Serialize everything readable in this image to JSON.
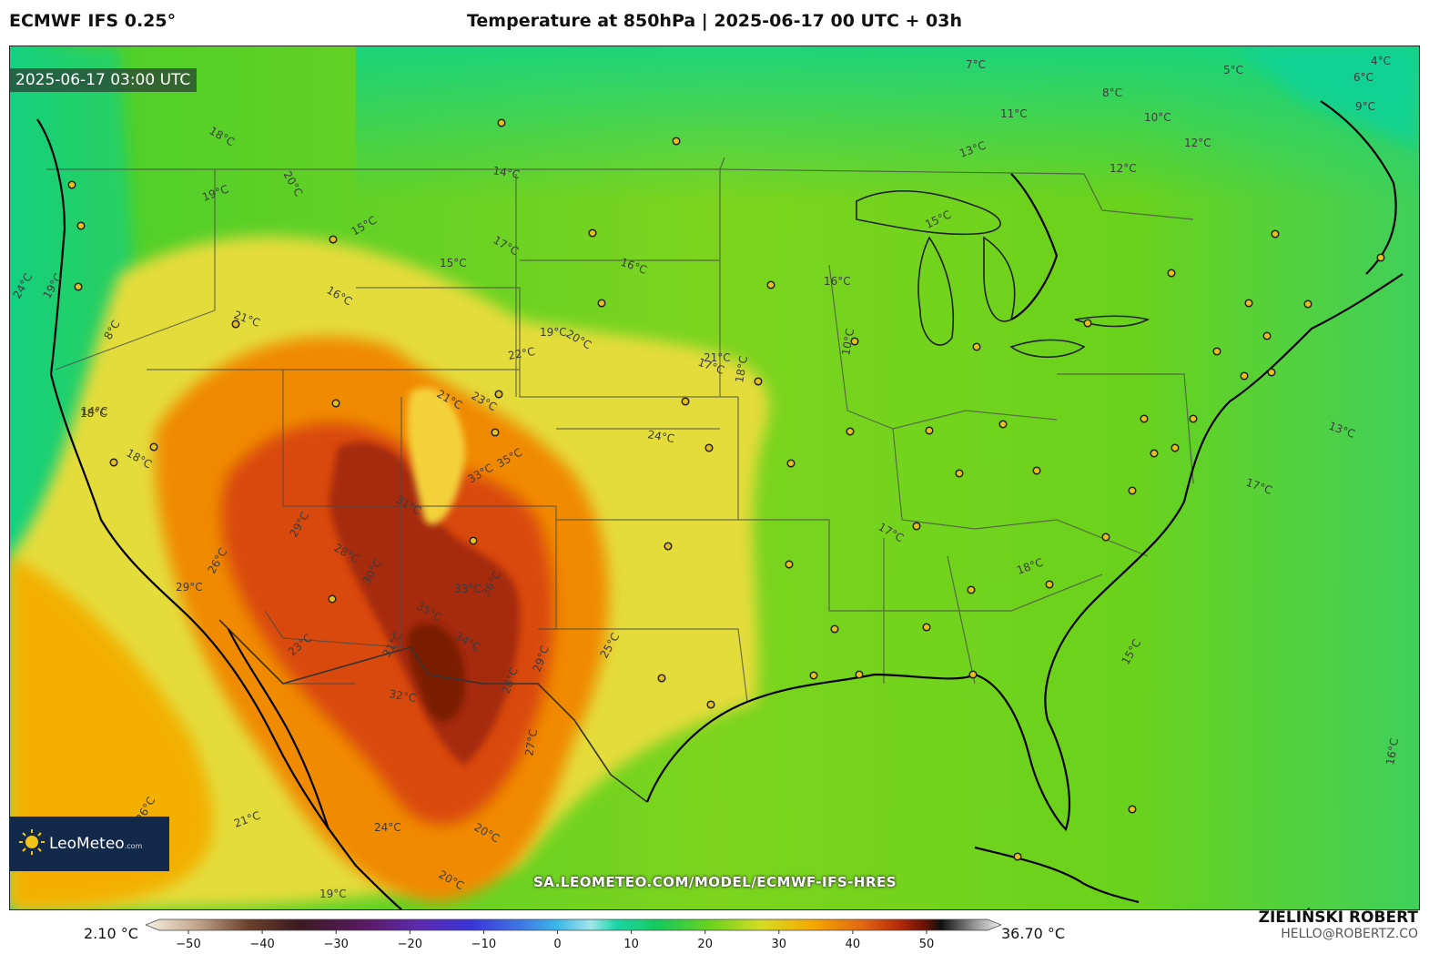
{
  "header": {
    "model": "ECMWF IFS 0.25°",
    "title": "Temperature at 850hPa | 2025-06-17 00 UTC + 03h"
  },
  "map": {
    "valid_time": "2025-06-17 03:00 UTC",
    "source_url": "SA.LEOMETEO.COM/MODEL/ECMWF-IFS-HRES",
    "logo_text": "LeoMeteo",
    "logo_suffix": ".com",
    "isotherm_labels": [
      "7°C",
      "5°C",
      "6°C",
      "4°C",
      "8°C",
      "11°C",
      "10°C",
      "9°C",
      "12°C",
      "13°C",
      "12°C",
      "15°C",
      "18°C",
      "20°C",
      "14°C",
      "19°C",
      "15°C",
      "17°C",
      "16°C",
      "15°C",
      "16°C",
      "21°C",
      "20°C",
      "19°C",
      "22°C",
      "21°C",
      "17°C",
      "18°C",
      "16°C",
      "10°C",
      "8°C",
      "19°C",
      "14°C",
      "24°C",
      "21°C",
      "23°C",
      "24°C",
      "33°C",
      "35°C",
      "31°C",
      "29°C",
      "28°C",
      "30°C",
      "35°C",
      "33°C",
      "36°C",
      "34°C",
      "31°C",
      "32°C",
      "28°C",
      "29°C",
      "27°C",
      "26°C",
      "29°C",
      "23°C",
      "25°C",
      "26°C",
      "21°C",
      "24°C",
      "20°C",
      "20°C",
      "19°C",
      "18°C",
      "18°C",
      "17°C",
      "13°C",
      "18°C",
      "15°C",
      "16°C",
      "17°C"
    ],
    "colors": {
      "land_cool": "#5fd21e",
      "ocean_cool": "#0dd28c",
      "warm": "#f0a000",
      "hot": "#c83a0a",
      "extreme": "#7a1a05"
    }
  },
  "colorbar": {
    "min_label": "2.10 °C",
    "max_label": "36.70 °C",
    "ticks": [
      "−50",
      "−40",
      "−30",
      "−20",
      "−10",
      "0",
      "10",
      "20",
      "30",
      "40",
      "50"
    ]
  },
  "credit": {
    "name": "ZIELIŃSKI ROBERT",
    "email": "HELLO@ROBERTZ.CO"
  }
}
